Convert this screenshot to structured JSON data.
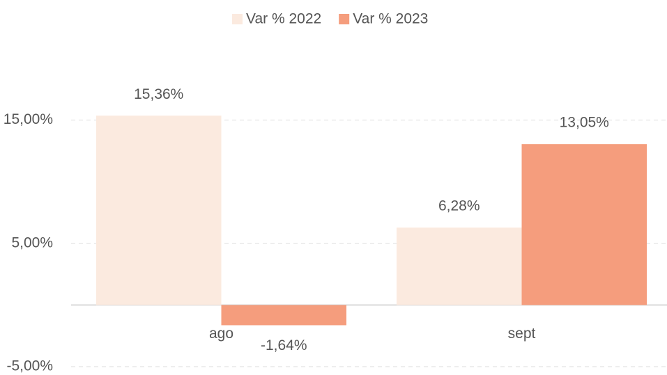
{
  "chart_data": {
    "type": "bar",
    "categories": [
      "ago",
      "sept"
    ],
    "series": [
      {
        "name": "Var % 2022",
        "color": "#fbeadf",
        "values": [
          15.36,
          6.28
        ],
        "value_labels": [
          "15,36%",
          "6,28%"
        ]
      },
      {
        "name": "Var % 2023",
        "color": "#f59d7d",
        "values": [
          -1.64,
          13.05
        ],
        "value_labels": [
          "-1,64%",
          "13,05%"
        ]
      }
    ],
    "ylim": [
      -5,
      20
    ],
    "yticks": [
      {
        "value": -5,
        "label": "-5,00%"
      },
      {
        "value": 5,
        "label": "5,00%"
      },
      {
        "value": 15,
        "label": "15,00%"
      }
    ],
    "grid": true,
    "legend": "top"
  }
}
